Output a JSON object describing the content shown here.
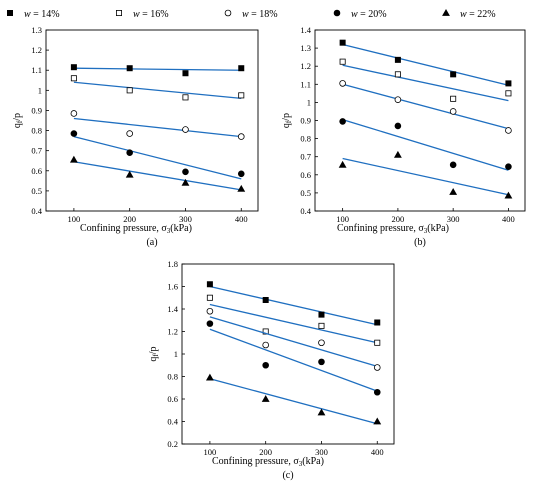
{
  "legend": [
    {
      "name": "w = 14%",
      "italic": "w",
      "rest": " = 14%",
      "marker": "square-filled"
    },
    {
      "name": "w = 16%",
      "italic": "w",
      "rest": " = 16%",
      "marker": "square-open"
    },
    {
      "name": "w = 18%",
      "italic": "w",
      "rest": " = 18%",
      "marker": "circle-open"
    },
    {
      "name": "w = 20%",
      "italic": "w",
      "rest": " = 20%",
      "marker": "circle-filled"
    },
    {
      "name": "w = 22%",
      "italic": "w",
      "rest": " = 22%",
      "marker": "triangle-filled"
    }
  ],
  "colors": {
    "fit_line": "#1f6fc0",
    "marker": "#000000",
    "axis": "#000000"
  },
  "chart_data": [
    {
      "type": "scatter",
      "panel_label": "(a)",
      "xlabel": "Confining pressure, σ3(kPa)",
      "xlabel_main": "Confining pressure, σ",
      "xlabel_sub": "3",
      "xlabel_unit": "(kPa)",
      "ylabel": "qf/p",
      "ylabel_main": "q",
      "ylabel_sub": "f",
      "ylabel_unit": "/p",
      "xlim": [
        50,
        430
      ],
      "ylim": [
        0.4,
        1.3
      ],
      "xticks": [
        100,
        200,
        300,
        400
      ],
      "yticks": [
        0.4,
        0.5,
        0.6,
        0.7,
        0.8,
        0.9,
        1.0,
        1.1,
        1.2,
        1.3
      ],
      "ytick_labels": [
        "0.4",
        "0.5",
        "0.6",
        "0.7",
        "0.8",
        "0.9",
        "1",
        "1.1",
        "1.2",
        "1.3"
      ],
      "x": [
        100,
        200,
        300,
        400
      ],
      "series": [
        {
          "name": "w = 14%",
          "values": [
            1.115,
            1.11,
            1.085,
            1.11
          ],
          "fit": [
            1.11,
            1.1
          ]
        },
        {
          "name": "w = 16%",
          "values": [
            1.06,
            1.0,
            0.965,
            0.975
          ],
          "fit": [
            1.04,
            0.96
          ]
        },
        {
          "name": "w = 18%",
          "values": [
            0.885,
            0.785,
            0.805,
            0.77
          ],
          "fit": [
            0.86,
            0.77
          ]
        },
        {
          "name": "w = 20%",
          "values": [
            0.785,
            0.69,
            0.595,
            0.585
          ],
          "fit": [
            0.77,
            0.56
          ]
        },
        {
          "name": "w = 22%",
          "values": [
            0.655,
            0.58,
            0.54,
            0.51
          ],
          "fit": [
            0.645,
            0.505
          ]
        }
      ]
    },
    {
      "type": "scatter",
      "panel_label": "(b)",
      "xlabel": "Confining pressure, σ3(kPa)",
      "xlabel_main": "Confining pressure, σ",
      "xlabel_sub": "3",
      "xlabel_unit": "(kPa)",
      "ylabel": "qf/p",
      "ylabel_main": "q",
      "ylabel_sub": "f",
      "ylabel_unit": "/p",
      "xlim": [
        50,
        430
      ],
      "ylim": [
        0.4,
        1.4
      ],
      "xticks": [
        100,
        200,
        300,
        400
      ],
      "yticks": [
        0.4,
        0.5,
        0.6,
        0.7,
        0.8,
        0.9,
        1.0,
        1.1,
        1.2,
        1.3,
        1.4
      ],
      "ytick_labels": [
        "0.4",
        "0.5",
        "0.6",
        "0.7",
        "0.8",
        "0.9",
        "1",
        "1.1",
        "1.2",
        "1.3",
        "1.4"
      ],
      "x": [
        100,
        200,
        300,
        400
      ],
      "series": [
        {
          "name": "w = 14%",
          "values": [
            1.33,
            1.235,
            1.155,
            1.105
          ],
          "fit": [
            1.32,
            1.095
          ]
        },
        {
          "name": "w = 16%",
          "values": [
            1.225,
            1.155,
            1.02,
            1.05
          ],
          "fit": [
            1.205,
            1.01
          ]
        },
        {
          "name": "w = 18%",
          "values": [
            1.105,
            1.015,
            0.95,
            0.845
          ],
          "fit": [
            1.1,
            0.855
          ]
        },
        {
          "name": "w = 20%",
          "values": [
            0.895,
            0.87,
            0.655,
            0.645
          ],
          "fit": [
            0.905,
            0.625
          ]
        },
        {
          "name": "w = 22%",
          "values": [
            0.655,
            0.71,
            0.505,
            0.485
          ],
          "fit": [
            0.69,
            0.49
          ]
        }
      ]
    },
    {
      "type": "scatter",
      "panel_label": "(c)",
      "xlabel": "Confining pressure, σ3(kPa)",
      "xlabel_main": "Confining pressure, σ",
      "xlabel_sub": "3",
      "xlabel_unit": "(kPa)",
      "ylabel": "qf/p",
      "ylabel_main": "q",
      "ylabel_sub": "f",
      "ylabel_unit": "/p",
      "xlim": [
        50,
        430
      ],
      "ylim": [
        0.2,
        1.8
      ],
      "xticks": [
        100,
        200,
        300,
        400
      ],
      "yticks": [
        0.2,
        0.4,
        0.6,
        0.8,
        1.0,
        1.2,
        1.4,
        1.6,
        1.8
      ],
      "ytick_labels": [
        "0.2",
        "0.4",
        "0.6",
        "0.8",
        "1",
        "1.2",
        "1.4",
        "1.6",
        "1.8"
      ],
      "x": [
        100,
        200,
        300,
        400
      ],
      "series": [
        {
          "name": "w = 14%",
          "values": [
            1.62,
            1.48,
            1.35,
            1.28
          ],
          "fit": [
            1.6,
            1.26
          ]
        },
        {
          "name": "w = 16%",
          "values": [
            1.5,
            1.2,
            1.25,
            1.1
          ],
          "fit": [
            1.44,
            1.1
          ]
        },
        {
          "name": "w = 18%",
          "values": [
            1.38,
            1.08,
            1.1,
            0.88
          ],
          "fit": [
            1.33,
            0.89
          ]
        },
        {
          "name": "w = 20%",
          "values": [
            1.27,
            0.9,
            0.93,
            0.66
          ],
          "fit": [
            1.22,
            0.67
          ]
        },
        {
          "name": "w = 22%",
          "values": [
            0.79,
            0.6,
            0.48,
            0.4
          ],
          "fit": [
            0.78,
            0.38
          ]
        }
      ]
    }
  ]
}
